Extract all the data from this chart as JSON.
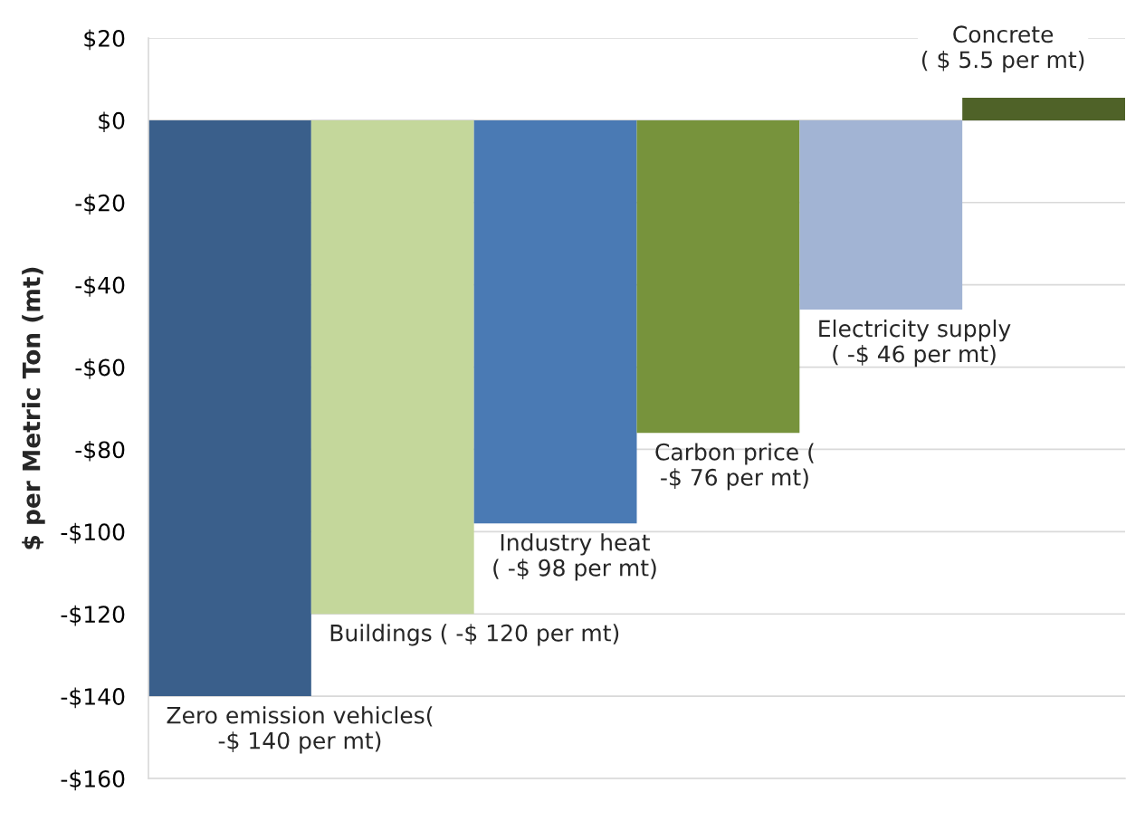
{
  "chart_data": {
    "type": "bar",
    "ylabel": "$ per Metric Ton (mt)",
    "categories": [
      null,
      null,
      null,
      null,
      null,
      null
    ],
    "values": [
      -140,
      -120,
      -98,
      -76,
      -46,
      5.5
    ],
    "colors": [
      "#3a5f8b",
      "#c4d79b",
      "#4a7ab4",
      "#77933c",
      "#a2b4d4",
      "#4f6228"
    ],
    "value_labels": [
      "Zero emission vehicles( -$ 140 per mt)",
      "Buildings ( -$ 120 per mt)",
      "Industry heat ( -$ 98 per mt)",
      "Carbon price ( -$ 76 per mt)",
      "Electricity supply\n( -$ 46 per mt)",
      "Concrete\n( $ 5.5 per mt)"
    ],
    "ylim": [
      -160,
      20
    ],
    "yticks": [
      {
        "value": 20,
        "label": "$20"
      },
      {
        "value": 0,
        "label": "$0"
      },
      {
        "value": -20,
        "label": "-$20"
      },
      {
        "value": -40,
        "label": "-$40"
      },
      {
        "value": -60,
        "label": "-$60"
      },
      {
        "value": -80,
        "label": "-$80"
      },
      {
        "value": -100,
        "label": "-$100"
      },
      {
        "value": -120,
        "label": "-$120"
      },
      {
        "value": -140,
        "label": "-$140"
      },
      {
        "value": -160,
        "label": "-$160"
      }
    ],
    "grid": "y"
  }
}
